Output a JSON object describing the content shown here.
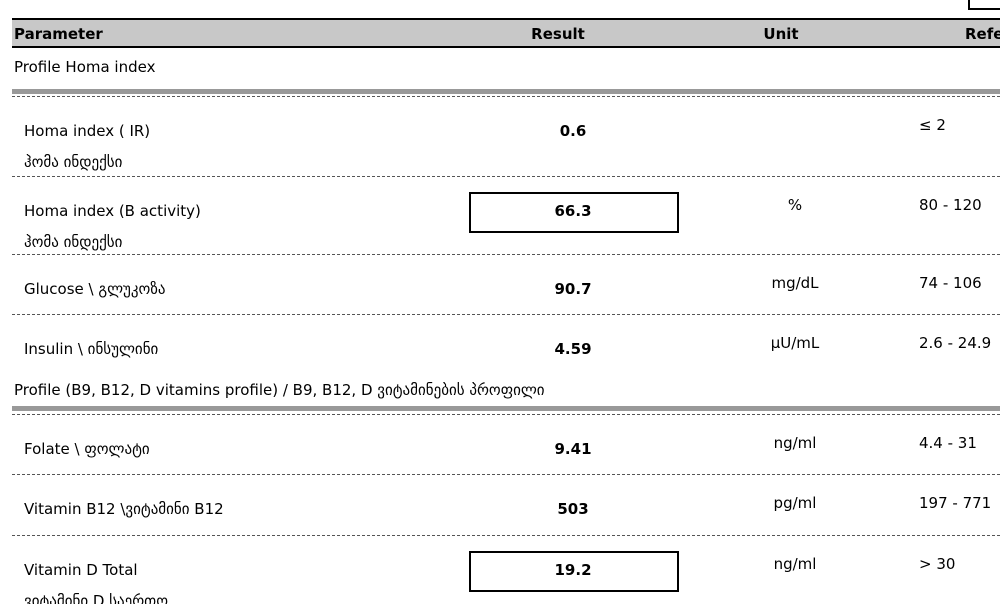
{
  "header": {
    "columns": [
      "Parameter",
      "Result",
      "Unit",
      "Refe"
    ]
  },
  "sections": [
    {
      "title": "Profile Homa index",
      "rows": [
        {
          "parameter": "Homa index ( IR)",
          "parameter_ka": "ჰომა ინდექსი",
          "result": "0.6",
          "unit": null,
          "reference": "≤ 2",
          "flagged": false
        },
        {
          "parameter": "Homa index (B activity)",
          "parameter_ka": "ჰომა ინდექსი",
          "result": "66.3",
          "unit": "%",
          "reference": "80 - 120",
          "flagged": true
        },
        {
          "parameter": "Glucose \\ გლუკოზა",
          "parameter_ka": null,
          "result": "90.7",
          "unit": "mg/dL",
          "reference": "74 - 106",
          "flagged": false
        },
        {
          "parameter": "Insulin \\ ინსულინი",
          "parameter_ka": null,
          "result": "4.59",
          "unit": "μU/mL",
          "reference": "2.6 - 24.9",
          "flagged": false
        }
      ]
    },
    {
      "title": "Profile (B9, B12, D vitamins profile) / B9, B12, D ვიტამინების პროფილი",
      "rows": [
        {
          "parameter": "Folate \\ ფოლატი",
          "parameter_ka": null,
          "result": "9.41",
          "unit": "ng/ml",
          "reference": "4.4 - 31",
          "flagged": false
        },
        {
          "parameter": "Vitamin B12 \\ვიტამინი B12",
          "parameter_ka": null,
          "result": "503",
          "unit": "pg/ml",
          "reference": "197 - 771",
          "flagged": false
        },
        {
          "parameter": "Vitamin D Total",
          "parameter_ka": "ვიტამინი D საერთო",
          "result": "19.2",
          "unit": "ng/ml",
          "reference": "> 30",
          "flagged": true
        }
      ]
    }
  ]
}
